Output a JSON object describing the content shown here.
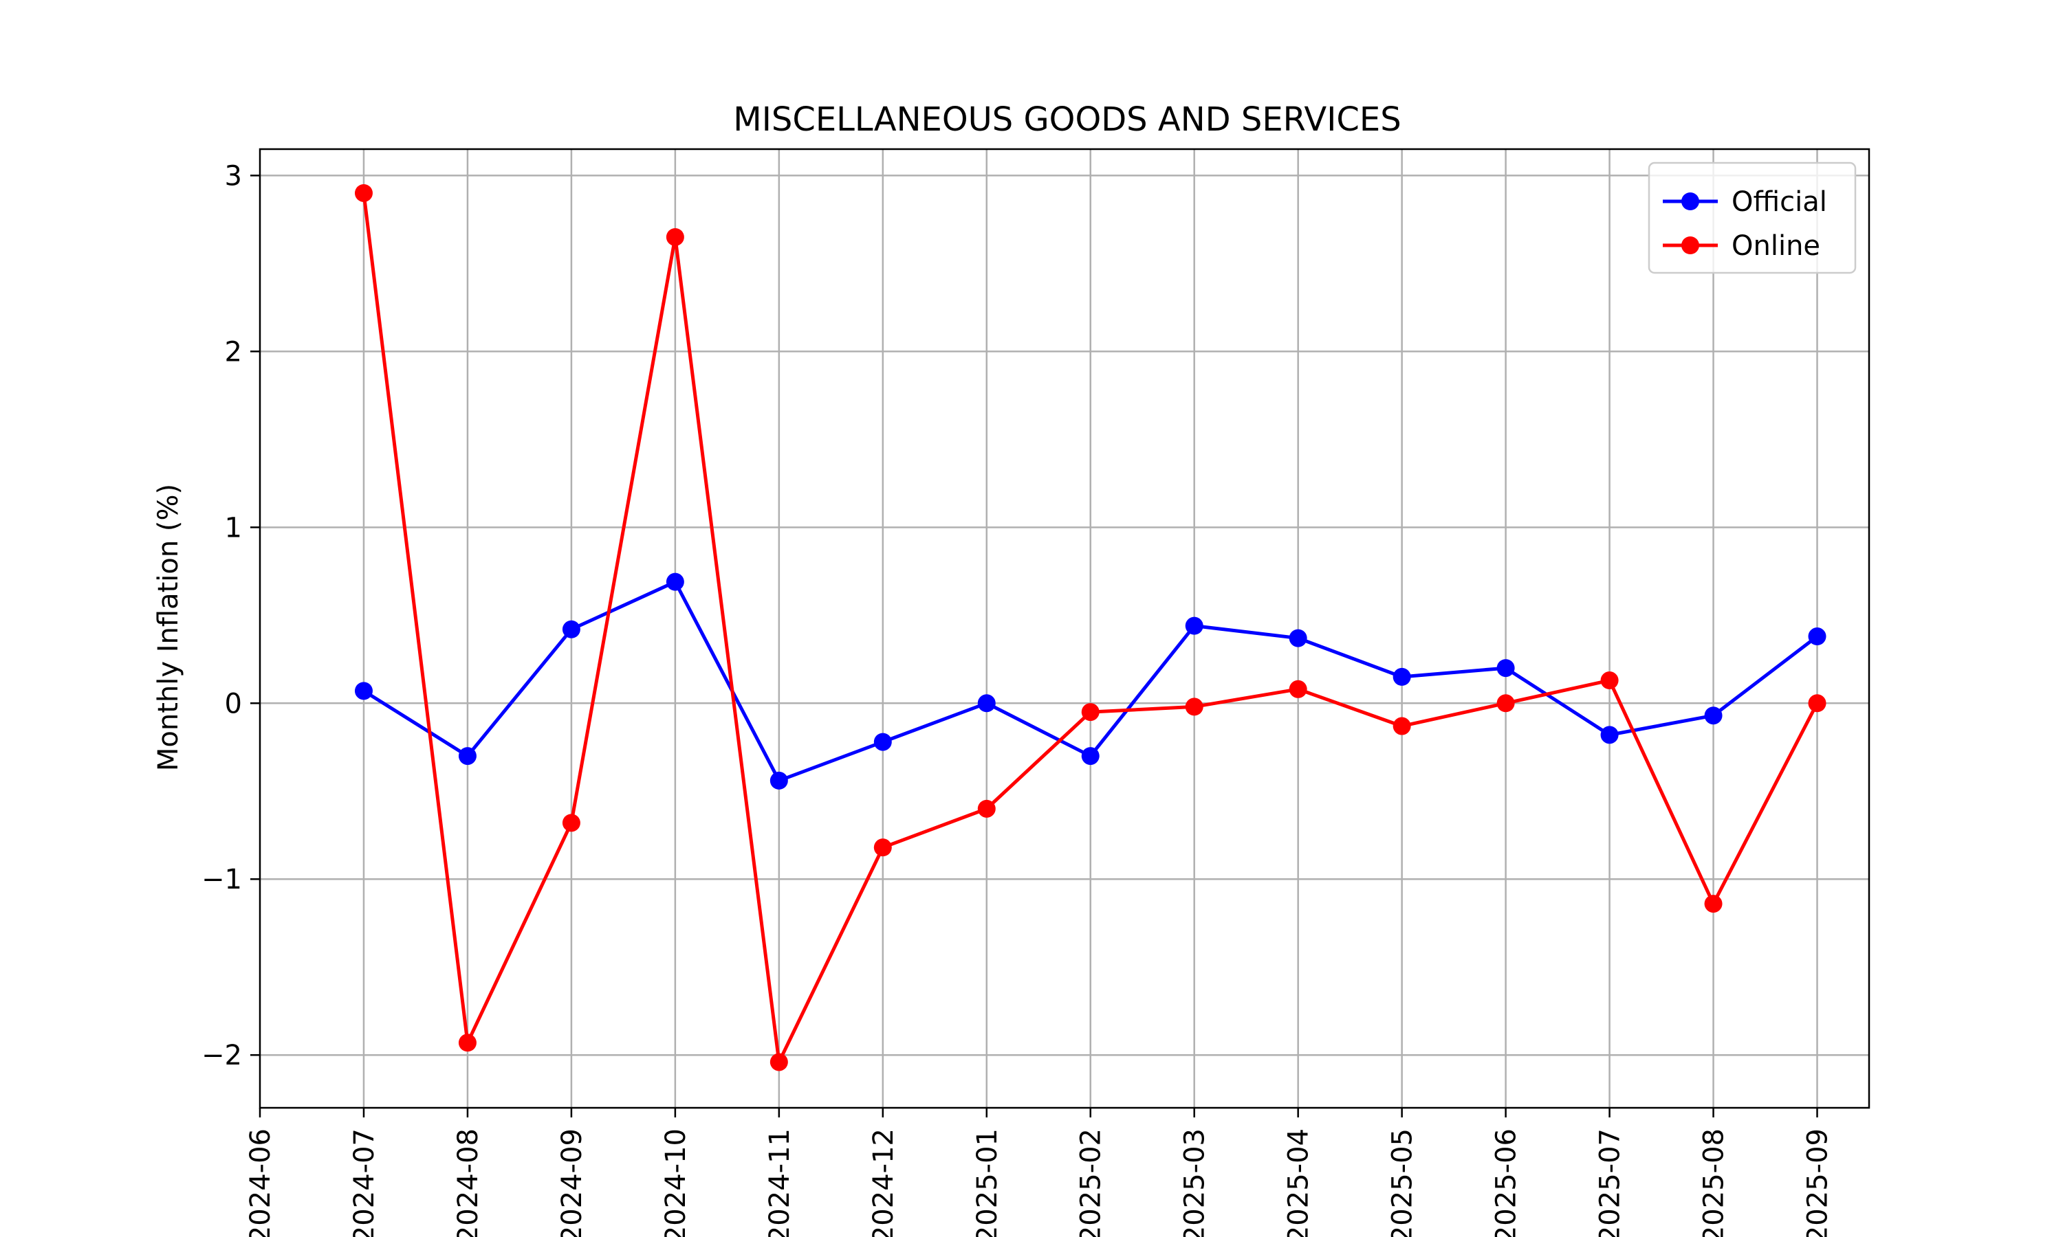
{
  "chart_data": {
    "type": "line",
    "title": "MISCELLANEOUS GOODS AND SERVICES",
    "xlabel": "",
    "ylabel": "Monthly Inflation (%)",
    "x_ticks": [
      "2024-06",
      "2024-07",
      "2024-08",
      "2024-09",
      "2024-10",
      "2024-11",
      "2024-12",
      "2025-01",
      "2025-02",
      "2025-03",
      "2025-04",
      "2025-05",
      "2025-06",
      "2025-07",
      "2025-08",
      "2025-09"
    ],
    "x": [
      "2024-07",
      "2024-08",
      "2024-09",
      "2024-10",
      "2024-11",
      "2024-12",
      "2025-01",
      "2025-02",
      "2025-03",
      "2025-04",
      "2025-05",
      "2025-06",
      "2025-07",
      "2025-08",
      "2025-09"
    ],
    "y_ticks": [
      -2,
      -1,
      0,
      1,
      2,
      3
    ],
    "ylim": [
      -2.3,
      3.15
    ],
    "grid": true,
    "legend_position": "top-right",
    "series": [
      {
        "name": "Official",
        "color": "#0000ff",
        "values": [
          0.07,
          -0.3,
          0.42,
          0.69,
          -0.44,
          -0.22,
          0.0,
          -0.3,
          0.44,
          0.37,
          0.15,
          0.2,
          -0.18,
          -0.07,
          0.38
        ]
      },
      {
        "name": "Online",
        "color": "#ff0000",
        "values": [
          2.9,
          -1.93,
          -0.68,
          2.65,
          -2.04,
          -0.82,
          -0.6,
          -0.05,
          -0.02,
          0.08,
          -0.13,
          0.0,
          0.13,
          -1.14,
          0.0
        ]
      }
    ]
  }
}
